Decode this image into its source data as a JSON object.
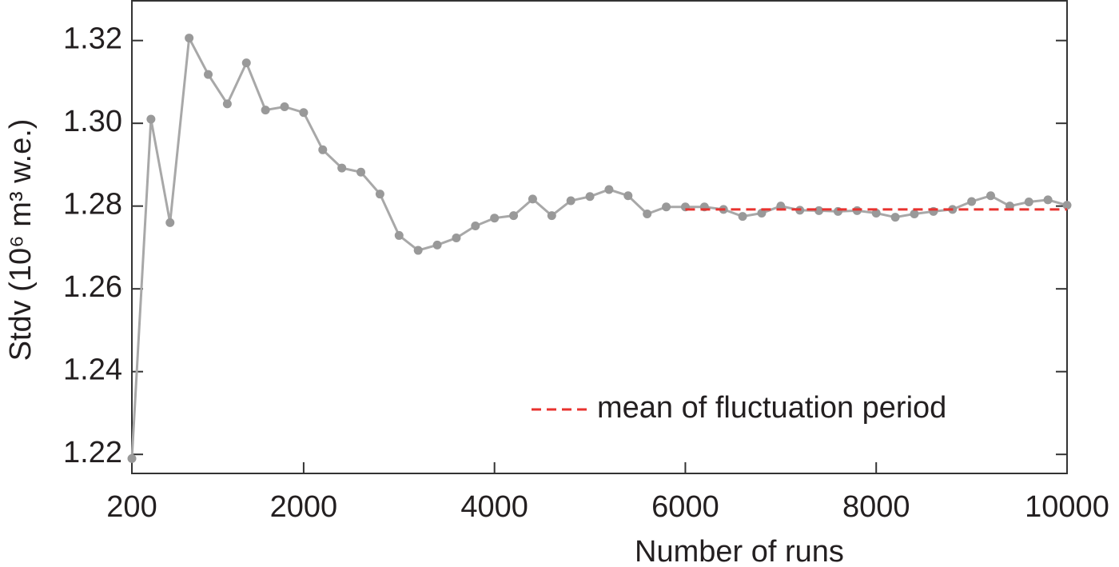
{
  "chart_data": {
    "type": "line",
    "xlabel": "Number of runs",
    "ylabel": "Stdv (10⁶ m³ w.e.)",
    "xlim": [
      200,
      10000
    ],
    "xticks": [
      200,
      2000,
      4000,
      6000,
      8000,
      10000
    ],
    "ylim": [
      1.2154,
      1.3296
    ],
    "yticks": [
      1.22,
      1.24,
      1.26,
      1.28,
      {
        "value": 1.3,
        "label": "1.30"
      },
      1.32
    ],
    "legend": "lower right",
    "series": [
      {
        "color": "#a8a8a8",
        "markers": true,
        "dashed": false,
        "x": [
          200,
          400,
          600,
          800,
          1000,
          1200,
          1400,
          1600,
          1800,
          2000,
          2200,
          2400,
          2600,
          2800,
          3000,
          3200,
          3400,
          3600,
          3800,
          4000,
          4200,
          4400,
          4600,
          4800,
          5000,
          5200,
          5400,
          5600,
          5800,
          6000,
          6200,
          6400,
          6600,
          6800,
          7000,
          7200,
          7400,
          7600,
          7800,
          8000,
          8200,
          8400,
          8600,
          8800,
          9000,
          9200,
          9400,
          9600,
          9800,
          10000
        ],
        "values": [
          1.219,
          1.301,
          1.276,
          1.3206,
          1.3118,
          1.3047,
          1.3146,
          1.3032,
          1.304,
          1.3026,
          1.2936,
          1.2892,
          1.2882,
          1.2829,
          1.2729,
          1.2693,
          1.2706,
          1.2723,
          1.2752,
          1.2771,
          1.2777,
          1.2817,
          1.2777,
          1.2813,
          1.2823,
          1.284,
          1.2825,
          1.2781,
          1.2798,
          1.2798,
          1.2798,
          1.2792,
          1.2775,
          1.2783,
          1.28,
          1.279,
          1.2789,
          1.2787,
          1.2789,
          1.2783,
          1.2773,
          1.2781,
          1.2787,
          1.2792,
          1.2811,
          1.2825,
          1.28,
          1.281,
          1.2815,
          1.2802
        ]
      },
      {
        "name": "mean of fluctuation period",
        "color": "#e8322e",
        "markers": false,
        "dashed": true,
        "x": [
          6000,
          10000
        ],
        "values": [
          1.2792,
          1.2792
        ]
      }
    ]
  }
}
